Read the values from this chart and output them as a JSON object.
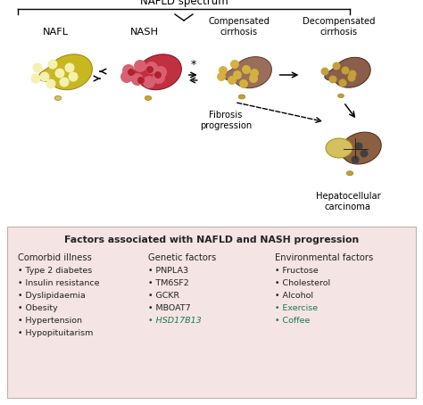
{
  "title_top": "NAFLD spectrum",
  "fibrosis_label": "Fibrosis\nprogression",
  "label_hcc": "Hepatocellular\ncarcinoma",
  "box_title": "Factors associated with NAFLD and NASH progression",
  "col1_header": "Comorbid illness",
  "col1_items": [
    "• Type 2 diabetes",
    "• Insulin resistance",
    "• Dyslipidaemia",
    "• Obesity",
    "• Hypertension",
    "• Hypopituitarism"
  ],
  "col2_header": "Genetic factors",
  "col2_items": [
    "• PNPLA3",
    "• TM6SF2",
    "• GCKR",
    "• MBOAT7",
    "• HSD17B13"
  ],
  "col2_colors": [
    "#222222",
    "#222222",
    "#222222",
    "#222222",
    "#1a7a4a"
  ],
  "col3_header": "Environmental factors",
  "col3_items": [
    "• Fructose",
    "• Cholesterol",
    "• Alcohol",
    "• Exercise",
    "• Coffee"
  ],
  "col3_colors": [
    "#222222",
    "#222222",
    "#222222",
    "#1a7a4a",
    "#1a7a4a"
  ],
  "bg_color": "#ffffff",
  "box_bg": "#f5e4e4",
  "box_border": "#c0a0a0",
  "nafl_color": "#c8b820",
  "nafl_spot": "#f5f0b0",
  "nash_color": "#c03040",
  "nash_spot": "#d86070",
  "nash_spot2": "#b02030",
  "comp_color": "#9a6e5a",
  "comp_spot": "#d4b040",
  "decomp_color": "#8a5e4a",
  "decomp_spot": "#c4a038",
  "hcc_color": "#8a6040",
  "hcc_tumor": "#d4c060",
  "hcc_nodule": "#404040"
}
